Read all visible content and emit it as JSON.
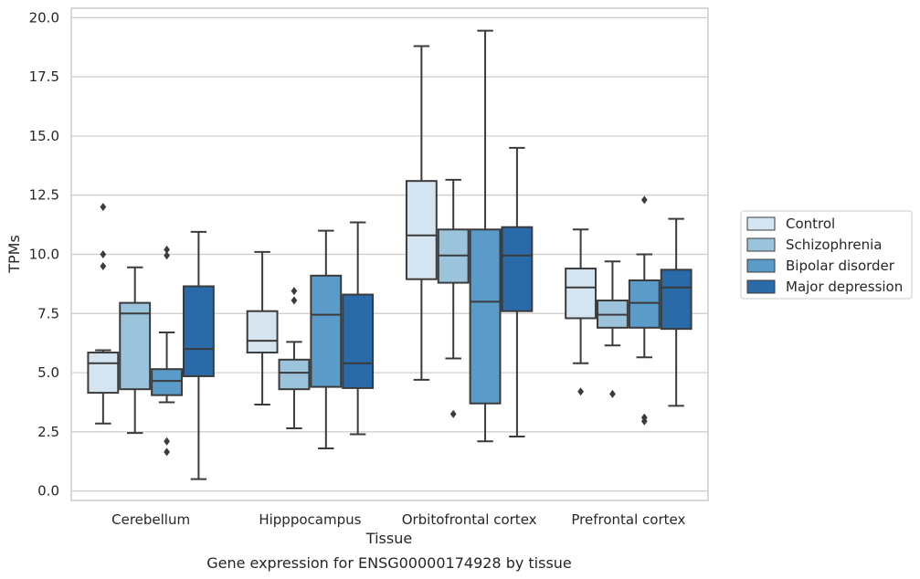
{
  "caption": "Gene expression for ENSG00000174928 by tissue",
  "chart_data": {
    "type": "box",
    "title": "",
    "xlabel": "Tissue",
    "ylabel": "TPMs",
    "ylim": [
      -0.4,
      20.4
    ],
    "yticks": [
      0.0,
      2.5,
      5.0,
      7.5,
      10.0,
      12.5,
      15.0,
      17.5,
      20.0
    ],
    "ytick_labels": [
      "0.0",
      "2.5",
      "5.0",
      "7.5",
      "10.0",
      "12.5",
      "15.0",
      "17.5",
      "20.0"
    ],
    "grid": "horizontal",
    "legend_position": "right",
    "categories": [
      "Cerebellum",
      "Hipppocampus",
      "Orbitofrontal cortex",
      "Prefrontal cortex"
    ],
    "series": [
      {
        "name": "Control",
        "color": "#d5e4f1",
        "boxes": [
          {
            "whislo": 2.85,
            "q1": 4.15,
            "med": 5.4,
            "q3": 5.85,
            "whishi": 5.95,
            "fliers": [
              12.0,
              10.0,
              9.5
            ]
          },
          {
            "whislo": 3.65,
            "q1": 5.85,
            "med": 6.35,
            "q3": 7.6,
            "whishi": 10.1,
            "fliers": []
          },
          {
            "whislo": 4.7,
            "q1": 8.95,
            "med": 10.8,
            "q3": 13.1,
            "whishi": 18.8,
            "fliers": []
          },
          {
            "whislo": 5.4,
            "q1": 7.3,
            "med": 8.6,
            "q3": 9.4,
            "whishi": 11.05,
            "fliers": [
              4.2
            ]
          }
        ]
      },
      {
        "name": "Schizophrenia",
        "color": "#9cc3dc",
        "boxes": [
          {
            "whislo": 2.45,
            "q1": 4.3,
            "med": 7.5,
            "q3": 7.95,
            "whishi": 9.45,
            "fliers": []
          },
          {
            "whislo": 2.65,
            "q1": 4.3,
            "med": 5.0,
            "q3": 5.55,
            "whishi": 6.3,
            "fliers": [
              8.45,
              8.05
            ]
          },
          {
            "whislo": 5.6,
            "q1": 8.8,
            "med": 9.95,
            "q3": 11.05,
            "whishi": 13.15,
            "fliers": [
              3.25
            ]
          },
          {
            "whislo": 6.15,
            "q1": 6.9,
            "med": 7.45,
            "q3": 8.05,
            "whishi": 9.7,
            "fliers": [
              4.1
            ]
          }
        ]
      },
      {
        "name": "Bipolar disorder",
        "color": "#5a9bc9",
        "boxes": [
          {
            "whislo": 3.75,
            "q1": 4.05,
            "med": 4.65,
            "q3": 5.15,
            "whishi": 6.7,
            "fliers": [
              10.2,
              9.95,
              2.1,
              1.65
            ]
          },
          {
            "whislo": 1.8,
            "q1": 4.4,
            "med": 7.45,
            "q3": 9.1,
            "whishi": 11.0,
            "fliers": []
          },
          {
            "whislo": 2.1,
            "q1": 3.7,
            "med": 8.0,
            "q3": 11.05,
            "whishi": 19.45,
            "fliers": []
          },
          {
            "whislo": 5.65,
            "q1": 6.9,
            "med": 7.95,
            "q3": 8.9,
            "whishi": 10.0,
            "fliers": [
              12.3,
              3.1,
              2.95
            ]
          }
        ]
      },
      {
        "name": "Major depression",
        "color": "#2b6aa8",
        "boxes": [
          {
            "whislo": 0.5,
            "q1": 4.85,
            "med": 6.0,
            "q3": 8.65,
            "whishi": 10.95,
            "fliers": []
          },
          {
            "whislo": 2.4,
            "q1": 4.35,
            "med": 5.4,
            "q3": 8.3,
            "whishi": 11.35,
            "fliers": []
          },
          {
            "whislo": 2.3,
            "q1": 7.6,
            "med": 9.95,
            "q3": 11.15,
            "whishi": 14.5,
            "fliers": []
          },
          {
            "whislo": 3.6,
            "q1": 6.85,
            "med": 8.6,
            "q3": 9.35,
            "whishi": 11.5,
            "fliers": []
          }
        ]
      }
    ]
  }
}
